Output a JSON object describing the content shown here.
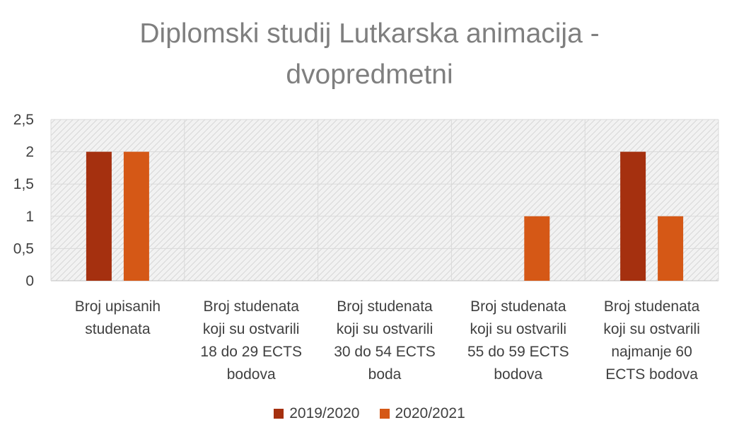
{
  "chart_data": {
    "type": "bar",
    "title_lines": [
      "Diplomski studij Lutkarska animacija -",
      "dvopredmetni"
    ],
    "categories": [
      [
        "Broj upisanih",
        "studenata"
      ],
      [
        "Broj studenata",
        "koji su ostvarili",
        "18 do 29 ECTS",
        "bodova"
      ],
      [
        "Broj studenata",
        "koji su ostvarili",
        "30 do 54 ECTS",
        "boda"
      ],
      [
        "Broj studenata",
        "koji su ostvarili",
        "55 do 59 ECTS",
        "bodova"
      ],
      [
        "Broj studenata",
        "koji su ostvarili",
        "najmanje 60",
        "ECTS bodova"
      ]
    ],
    "series": [
      {
        "name": "2019/2020",
        "color": "#a5300f",
        "values": [
          2,
          0,
          0,
          0,
          2
        ]
      },
      {
        "name": "2020/2021",
        "color": "#d55816",
        "values": [
          2,
          0,
          0,
          1,
          1
        ]
      }
    ],
    "ylim": [
      0,
      2.5
    ],
    "yticks": [
      "0",
      "0,5",
      "1",
      "1,5",
      "2",
      "2,5"
    ],
    "ytick_values": [
      0,
      0.5,
      1,
      1.5,
      2,
      2.5
    ],
    "grid": true,
    "plot_background": "hatched light gray",
    "legend_position": "bottom"
  }
}
